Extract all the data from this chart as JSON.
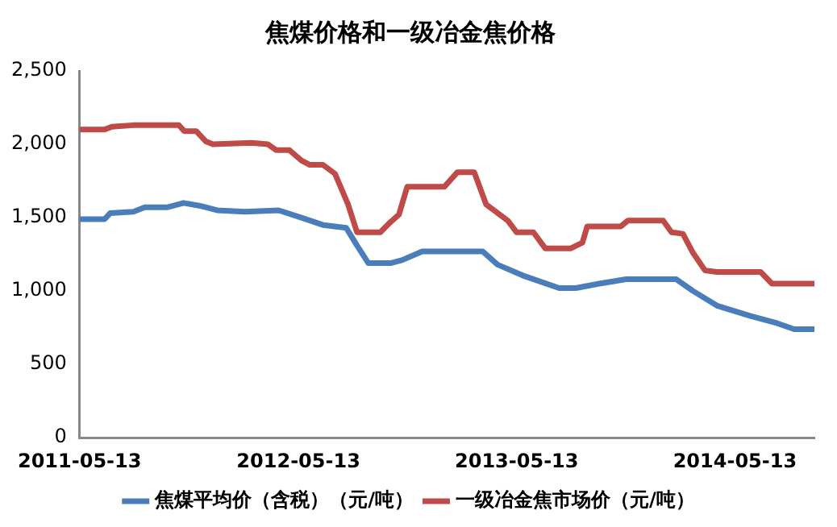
{
  "chart_data": {
    "type": "line",
    "title": "焦煤价格和一级冶金焦价格",
    "xlim": [
      "2011-05-13",
      "2014-09-23"
    ],
    "xticks": [
      "2011-05-13",
      "2012-05-13",
      "2013-05-13",
      "2014-05-13"
    ],
    "ylim": [
      0,
      2500
    ],
    "yticks": [
      0,
      {
        "value": 500,
        "label": "500"
      },
      {
        "value": 1000,
        "label": "1,000"
      },
      {
        "value": 1500,
        "label": "1,500"
      },
      {
        "value": 2000,
        "label": "2,000"
      },
      {
        "value": 2500,
        "label": "2,500"
      }
    ],
    "grid": false,
    "legend": "bottom",
    "marker": "none",
    "line_style": "solid",
    "series": [
      {
        "name": "焦煤平均价（含税）（元/吨）",
        "color": "#4a7ebb",
        "x": [
          "2011-05-13",
          "2011-06-24",
          "2011-07-03",
          "2011-08-11",
          "2011-08-30",
          "2011-10-06",
          "2011-11-03",
          "2011-12-01",
          "2011-12-29",
          "2012-02-14",
          "2012-04-10",
          "2012-05-18",
          "2012-06-23",
          "2012-08-01",
          "2012-08-19",
          "2012-09-07",
          "2012-10-14",
          "2012-11-02",
          "2012-12-06",
          "2013-01-26",
          "2013-03-17",
          "2013-04-11",
          "2013-05-27",
          "2013-07-23",
          "2013-08-20",
          "2013-09-28",
          "2013-11-12",
          "2014-02-04",
          "2014-03-04",
          "2014-04-13",
          "2014-06-08",
          "2014-07-23",
          "2014-08-20",
          "2014-09-23"
        ],
        "values": [
          1490,
          1490,
          1530,
          1540,
          1570,
          1570,
          1600,
          1580,
          1550,
          1540,
          1550,
          1500,
          1450,
          1430,
          1310,
          1190,
          1190,
          1210,
          1270,
          1270,
          1270,
          1180,
          1100,
          1020,
          1020,
          1050,
          1080,
          1080,
          1000,
          900,
          830,
          780,
          740,
          740
        ]
      },
      {
        "name": "一级冶金焦市场价（元/吨）",
        "color": "#be4b48",
        "x": [
          "2011-05-13",
          "2011-06-24",
          "2011-07-06",
          "2011-08-11",
          "2011-10-26",
          "2011-11-04",
          "2011-11-24",
          "2011-12-10",
          "2011-12-22",
          "2012-02-24",
          "2012-03-23",
          "2012-04-06",
          "2012-04-28",
          "2012-05-18",
          "2012-06-01",
          "2012-06-23",
          "2012-07-13",
          "2012-08-04",
          "2012-08-19",
          "2012-09-27",
          "2012-10-14",
          "2012-10-28",
          "2012-11-11",
          "2013-01-12",
          "2013-02-03",
          "2013-03-03",
          "2013-03-23",
          "2013-04-28",
          "2013-05-13",
          "2013-06-10",
          "2013-06-30",
          "2013-08-11",
          "2013-08-31",
          "2013-09-08",
          "2013-11-03",
          "2013-11-15",
          "2014-01-13",
          "2014-01-27",
          "2014-02-15",
          "2014-03-04",
          "2014-03-24",
          "2014-04-13",
          "2014-06-25",
          "2014-07-14",
          "2014-09-23"
        ],
        "values": [
          2100,
          2100,
          2120,
          2130,
          2130,
          2090,
          2090,
          2020,
          2000,
          2010,
          2000,
          1960,
          1960,
          1890,
          1860,
          1860,
          1800,
          1590,
          1400,
          1400,
          1470,
          1520,
          1710,
          1710,
          1810,
          1810,
          1590,
          1480,
          1400,
          1400,
          1290,
          1290,
          1330,
          1440,
          1440,
          1480,
          1480,
          1400,
          1390,
          1260,
          1140,
          1130,
          1130,
          1050,
          1050
        ]
      }
    ]
  }
}
